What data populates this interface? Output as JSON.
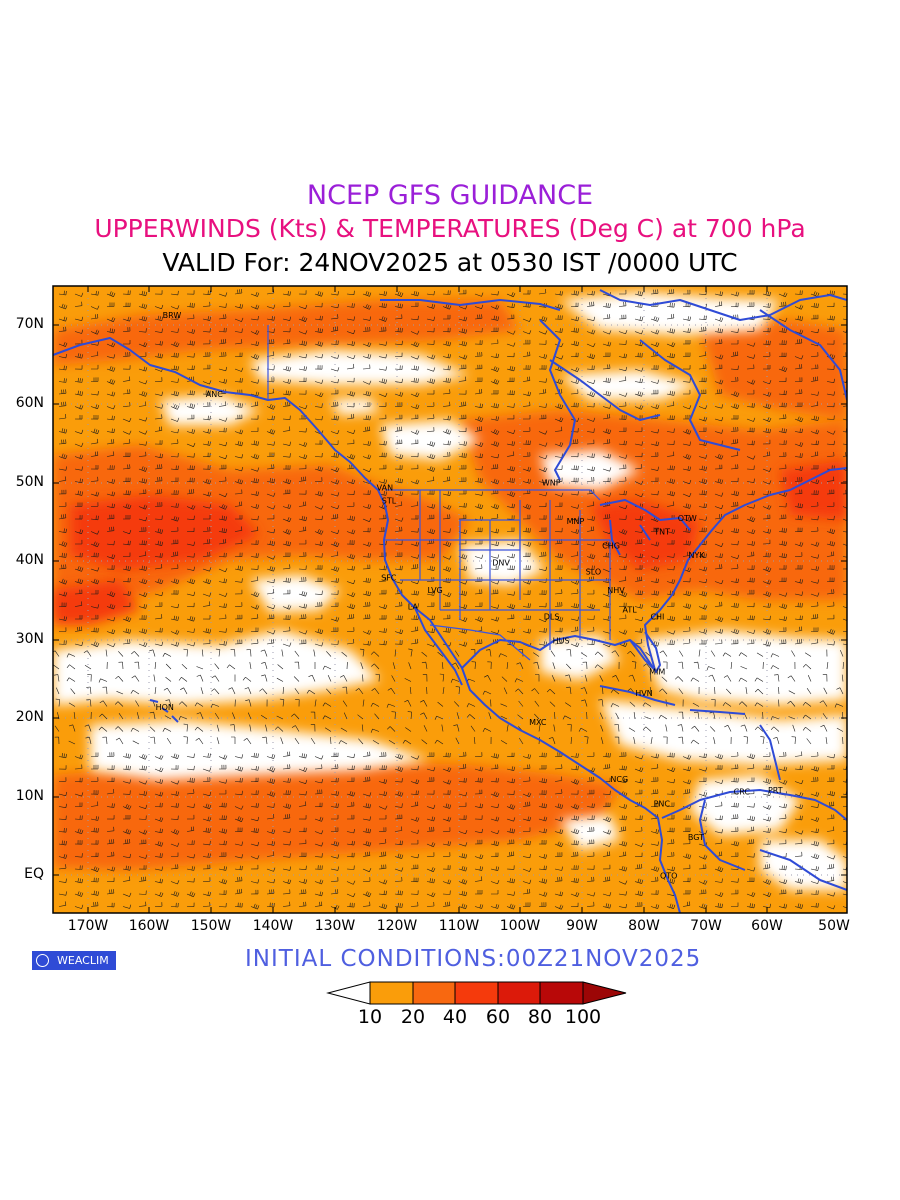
{
  "titles": {
    "line1": "NCEP GFS GUIDANCE",
    "line2": "UPPERWINDS (Kts) & TEMPERATURES (Deg C) at 700 hPa",
    "line3": "VALID For: 24NOV2025 at 0530 IST /0000 UTC"
  },
  "axes": {
    "lat_labels": [
      "70N",
      "60N",
      "50N",
      "40N",
      "30N",
      "20N",
      "10N",
      "EQ"
    ],
    "lon_labels": [
      "170W",
      "160W",
      "150W",
      "140W",
      "130W",
      "120W",
      "110W",
      "100W",
      "90W",
      "80W",
      "70W",
      "60W",
      "50W"
    ]
  },
  "stations": [
    {
      "name": "ANC",
      "lon": -150,
      "lat": 61.2
    },
    {
      "name": "BRW",
      "lon": -156.8,
      "lat": 71.3
    },
    {
      "name": "VAN",
      "lon": -123.1,
      "lat": 49.3
    },
    {
      "name": "STL",
      "lon": -122.3,
      "lat": 47.6
    },
    {
      "name": "WNP",
      "lon": -97.1,
      "lat": 49.9
    },
    {
      "name": "MNP",
      "lon": -93.2,
      "lat": 45.0
    },
    {
      "name": "OTW",
      "lon": -75.7,
      "lat": 45.4
    },
    {
      "name": "TNT",
      "lon": -79.4,
      "lat": 43.7
    },
    {
      "name": "CHG",
      "lon": -87.6,
      "lat": 41.9
    },
    {
      "name": "NYK",
      "lon": -74.0,
      "lat": 40.7
    },
    {
      "name": "DNV",
      "lon": -104.9,
      "lat": 39.7
    },
    {
      "name": "SFC",
      "lon": -122.4,
      "lat": 37.8
    },
    {
      "name": "LVG",
      "lon": -115.1,
      "lat": 36.2
    },
    {
      "name": "LA",
      "lon": -118.2,
      "lat": 34.1
    },
    {
      "name": "SLO",
      "lon": -90.2,
      "lat": 38.6
    },
    {
      "name": "NHV",
      "lon": -86.8,
      "lat": 36.2
    },
    {
      "name": "ATL",
      "lon": -84.4,
      "lat": 33.7
    },
    {
      "name": "DLS",
      "lon": -96.8,
      "lat": 32.8
    },
    {
      "name": "CHI",
      "lon": -80.0,
      "lat": 32.8
    },
    {
      "name": "HUS",
      "lon": -95.4,
      "lat": 29.8
    },
    {
      "name": "MIM",
      "lon": -80.2,
      "lat": 25.8
    },
    {
      "name": "HVN",
      "lon": -82.4,
      "lat": 23.1
    },
    {
      "name": "HON",
      "lon": -157.9,
      "lat": 21.3
    },
    {
      "name": "MXC",
      "lon": -99.1,
      "lat": 19.4
    },
    {
      "name": "NCG",
      "lon": -86.3,
      "lat": 12.1
    },
    {
      "name": "PNC",
      "lon": -79.5,
      "lat": 9.0
    },
    {
      "name": "CRC",
      "lon": -66.9,
      "lat": 10.5
    },
    {
      "name": "PRT",
      "lon": -61.5,
      "lat": 10.7
    },
    {
      "name": "BGT",
      "lon": -74.1,
      "lat": 4.7
    },
    {
      "name": "QTO",
      "lon": -78.5,
      "lat": -0.2
    }
  ],
  "initial_conditions": "INITIAL  CONDITIONS:00Z21NOV2025",
  "colorbar": {
    "labels": [
      "10",
      "20",
      "40",
      "60",
      "80",
      "100"
    ],
    "colors": [
      "#ffffff",
      "#fa9d0a",
      "#f86810",
      "#f53a0c",
      "#dc1a0a",
      "#b80808",
      "#9c0606"
    ]
  },
  "logo": "WEACLIM",
  "colors": {
    "coast": "#2f4bd6",
    "title1": "#9b1fd8",
    "title2": "#e8107f",
    "temp_numbers": "#3a48d8"
  }
}
